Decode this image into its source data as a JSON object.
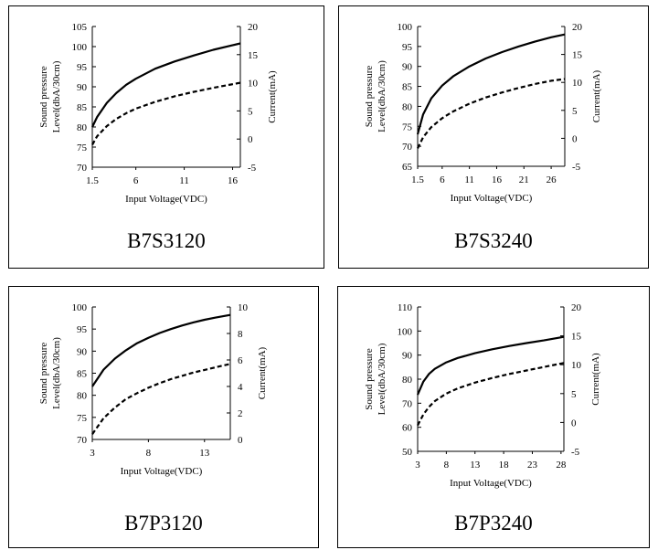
{
  "chart_data": [
    {
      "type": "line",
      "title": "B7S3120",
      "xlabel": "Input Voltage(VDC)",
      "ylabel": "Sound pressure\nLevel(dbA/30cm)",
      "y2label": "Current(mA)",
      "xlim": [
        1.5,
        16.8
      ],
      "xticks": [
        "1.5",
        "6",
        "11",
        "16"
      ],
      "xtick_values": [
        1.5,
        6,
        11,
        16
      ],
      "ylim": [
        70,
        105
      ],
      "yticks": [
        "70",
        "75",
        "80",
        "85",
        "90",
        "95",
        "100",
        "105"
      ],
      "ylim2": [
        -5,
        20
      ],
      "yticks2": [
        "-5",
        "0",
        "5",
        "10",
        "15",
        "20"
      ],
      "grid": false,
      "series": [
        {
          "axis": "left",
          "style": "solid",
          "x": [
            1.5,
            2,
            3,
            4,
            5,
            6,
            8,
            10,
            12,
            14,
            16.8
          ],
          "y": [
            80,
            82.5,
            86,
            88.5,
            90.5,
            92,
            94.5,
            96.3,
            97.8,
            99.2,
            100.8
          ]
        },
        {
          "axis": "right",
          "style": "dashed",
          "x": [
            1.5,
            2,
            3,
            4,
            5,
            6,
            8,
            10,
            12,
            14,
            16.8
          ],
          "y": [
            -1,
            0.5,
            2.3,
            3.6,
            4.6,
            5.4,
            6.6,
            7.6,
            8.4,
            9.1,
            10
          ]
        }
      ]
    },
    {
      "type": "line",
      "title": "B7S3240",
      "xlabel": "Input Voltage(VDC)",
      "ylabel": "Sound pressure\nLevel(dbA/30cm)",
      "y2label": "Current(mA)",
      "xlim": [
        1.5,
        28.5
      ],
      "xticks": [
        "1.5",
        "6",
        "11",
        "16",
        "21",
        "26"
      ],
      "xtick_values": [
        1.5,
        6,
        11,
        16,
        21,
        26
      ],
      "ylim": [
        65,
        100
      ],
      "yticks": [
        "65",
        "70",
        "75",
        "80",
        "85",
        "90",
        "95",
        "100"
      ],
      "ylim2": [
        -5,
        20
      ],
      "yticks2": [
        "-5",
        "0",
        "5",
        "10",
        "15",
        "20"
      ],
      "grid": false,
      "series": [
        {
          "axis": "left",
          "style": "solid",
          "x": [
            1.5,
            2.5,
            4,
            6,
            8,
            11,
            14,
            17,
            20,
            23,
            26,
            28.5
          ],
          "y": [
            73,
            78,
            82,
            85.2,
            87.5,
            90,
            92,
            93.6,
            95,
            96.2,
            97.3,
            98
          ]
        },
        {
          "axis": "right",
          "style": "dashed",
          "x": [
            1.5,
            2.5,
            4,
            6,
            8,
            11,
            14,
            17,
            20,
            23,
            26,
            28.5
          ],
          "y": [
            -1.8,
            0.2,
            2,
            3.6,
            4.8,
            6.2,
            7.3,
            8.2,
            9,
            9.7,
            10.3,
            10.6
          ]
        }
      ]
    },
    {
      "type": "line",
      "title": "B7P3120",
      "xlabel": "Input Voltage(VDC)",
      "ylabel": "Sound pressure\nLevel(dbA/30cm)",
      "y2label": "Current(mA)",
      "xlim": [
        3,
        15.3
      ],
      "xticks": [
        "3",
        "8",
        "13"
      ],
      "xtick_values": [
        3,
        8,
        13
      ],
      "ylim": [
        70,
        100
      ],
      "yticks": [
        "70",
        "75",
        "80",
        "85",
        "90",
        "95",
        "100"
      ],
      "ylim2": [
        0,
        10
      ],
      "yticks2": [
        "0",
        "2",
        "4",
        "6",
        "8",
        "10"
      ],
      "grid": false,
      "series": [
        {
          "axis": "left",
          "style": "solid",
          "x": [
            3,
            4,
            5,
            6,
            7,
            8,
            9,
            10,
            11,
            12,
            13,
            14,
            15.3
          ],
          "y": [
            82,
            85.8,
            88.3,
            90.2,
            91.8,
            93,
            94.1,
            95,
            95.8,
            96.5,
            97.1,
            97.6,
            98.2
          ]
        },
        {
          "axis": "right",
          "style": "dashed",
          "x": [
            3,
            4,
            5,
            6,
            7,
            8,
            9,
            10,
            11,
            12,
            13,
            14,
            15.3
          ],
          "y": [
            0.4,
            1.6,
            2.4,
            3.05,
            3.5,
            3.9,
            4.25,
            4.55,
            4.8,
            5.05,
            5.25,
            5.45,
            5.7
          ]
        }
      ]
    },
    {
      "type": "line",
      "title": "B7P3240",
      "xlabel": "Input Voltage(VDC)",
      "ylabel": "Sound pressure\nLevel(dbA/30cm)",
      "y2label": "Current(mA)",
      "xlim": [
        3,
        28.5
      ],
      "xticks": [
        "3",
        "8",
        "13",
        "18",
        "23",
        "28"
      ],
      "xtick_values": [
        3,
        8,
        13,
        18,
        23,
        28
      ],
      "ylim": [
        50,
        110
      ],
      "yticks": [
        "50",
        "60",
        "70",
        "80",
        "90",
        "100",
        "110"
      ],
      "ylim2": [
        -5,
        20
      ],
      "yticks2": [
        "-5",
        "0",
        "5",
        "10",
        "15",
        "20"
      ],
      "grid": false,
      "series": [
        {
          "axis": "left",
          "style": "solid",
          "x": [
            3,
            4,
            5,
            6,
            8,
            10,
            13,
            16,
            19,
            22,
            25,
            28.5
          ],
          "y": [
            73.5,
            79,
            82.2,
            84.3,
            87,
            88.8,
            90.8,
            92.4,
            93.8,
            95,
            96.1,
            97.6
          ]
        },
        {
          "axis": "right",
          "style": "dashed",
          "x": [
            3,
            4,
            5,
            6,
            8,
            10,
            13,
            16,
            19,
            22,
            25,
            28.5
          ],
          "y": [
            -0.5,
            1.4,
            2.7,
            3.7,
            5,
            5.9,
            6.9,
            7.7,
            8.4,
            9,
            9.6,
            10.3
          ]
        }
      ]
    }
  ]
}
